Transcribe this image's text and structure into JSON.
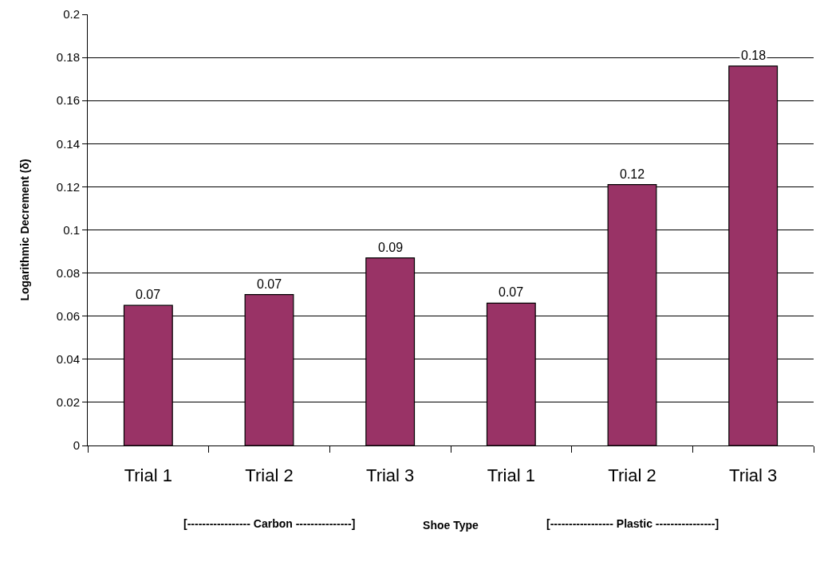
{
  "chart_data": {
    "type": "bar",
    "categories": [
      "Trial 1",
      "Trial 2",
      "Trial 3",
      "Trial 1",
      "Trial 2",
      "Trial 3"
    ],
    "values": [
      0.065,
      0.07,
      0.087,
      0.066,
      0.121,
      0.176
    ],
    "value_labels": [
      "0.07",
      "0.07",
      "0.09",
      "0.07",
      "0.12",
      "0.18"
    ],
    "color": "#993366",
    "xlabel": "Shoe Type",
    "ylabel": "Logarithmic Decrement (δ)",
    "annotations": [
      "[----------------- Carbon ---------------]",
      "[----------------- Plastic ----------------]"
    ],
    "ylim": [
      0,
      0.2
    ],
    "yticks": [
      0,
      0.02,
      0.04,
      0.06,
      0.08,
      0.1,
      0.12,
      0.14,
      0.16,
      0.18,
      0.2
    ],
    "grid": "y",
    "legend": false
  }
}
